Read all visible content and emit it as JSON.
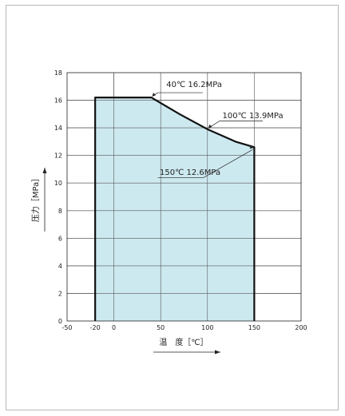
{
  "chart_data": {
    "type": "area",
    "xlabel": "温　度［℃］",
    "ylabel": "压力［MPa］",
    "xlim": [
      -50,
      200
    ],
    "ylim": [
      0,
      18
    ],
    "x_ticks": [
      -50,
      -20,
      0,
      50,
      100,
      150,
      200
    ],
    "y_ticks": [
      0,
      2,
      4,
      6,
      8,
      10,
      12,
      14,
      16,
      18
    ],
    "grid": true,
    "fill_color": "#cde9f0",
    "line_color": "#111111",
    "series": [
      {
        "x": [
          -20,
          -20,
          40,
          70,
          100,
          130,
          150,
          150
        ],
        "y": [
          0,
          16.2,
          16.2,
          15.0,
          13.9,
          13.0,
          12.6,
          0
        ]
      }
    ],
    "annotations": [
      {
        "text": "40℃ 16.2MPa",
        "x": 40,
        "y": 16.2
      },
      {
        "text": "100℃ 13.9MPa",
        "x": 100,
        "y": 13.9
      },
      {
        "text": "150℃ 12.6MPa",
        "x": 150,
        "y": 12.6
      }
    ]
  }
}
